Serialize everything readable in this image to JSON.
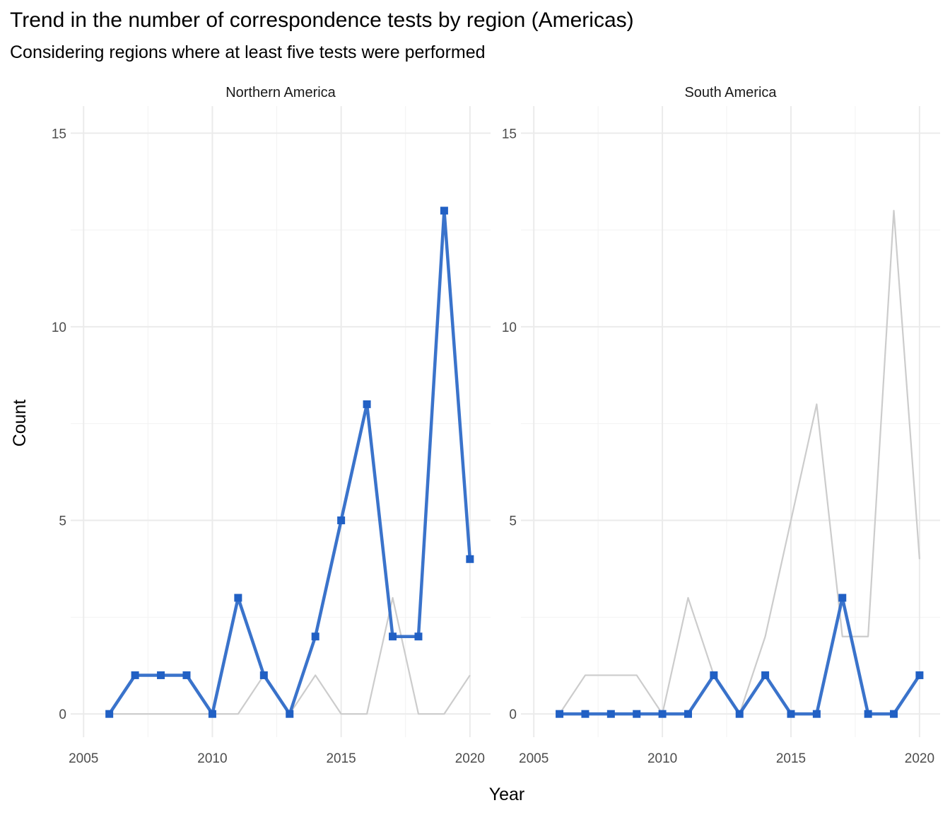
{
  "title": "Trend in the number of correspondence tests by region (Americas)",
  "subtitle": "Considering regions where at least five tests were performed",
  "chart_data": {
    "type": "line",
    "xlabel": "Year",
    "ylabel": "Count",
    "xlim": [
      2004.5,
      2020.8
    ],
    "ylim": [
      -0.6,
      15.7
    ],
    "x_ticks": [
      2005,
      2010,
      2015,
      2020
    ],
    "y_ticks": [
      0,
      5,
      10,
      15
    ],
    "grid": true,
    "years": [
      2006,
      2007,
      2008,
      2009,
      2010,
      2011,
      2012,
      2013,
      2014,
      2015,
      2016,
      2017,
      2018,
      2019,
      2020
    ],
    "highlight_color": "#2f6cc8",
    "background_color": "#cccccc",
    "facets": [
      {
        "name": "Northern America",
        "values": [
          0,
          1,
          1,
          1,
          0,
          3,
          1,
          0,
          2,
          5,
          8,
          2,
          2,
          13,
          4
        ]
      },
      {
        "name": "South America",
        "values": [
          0,
          0,
          0,
          0,
          0,
          0,
          1,
          0,
          1,
          0,
          0,
          3,
          0,
          0,
          1
        ]
      }
    ]
  }
}
